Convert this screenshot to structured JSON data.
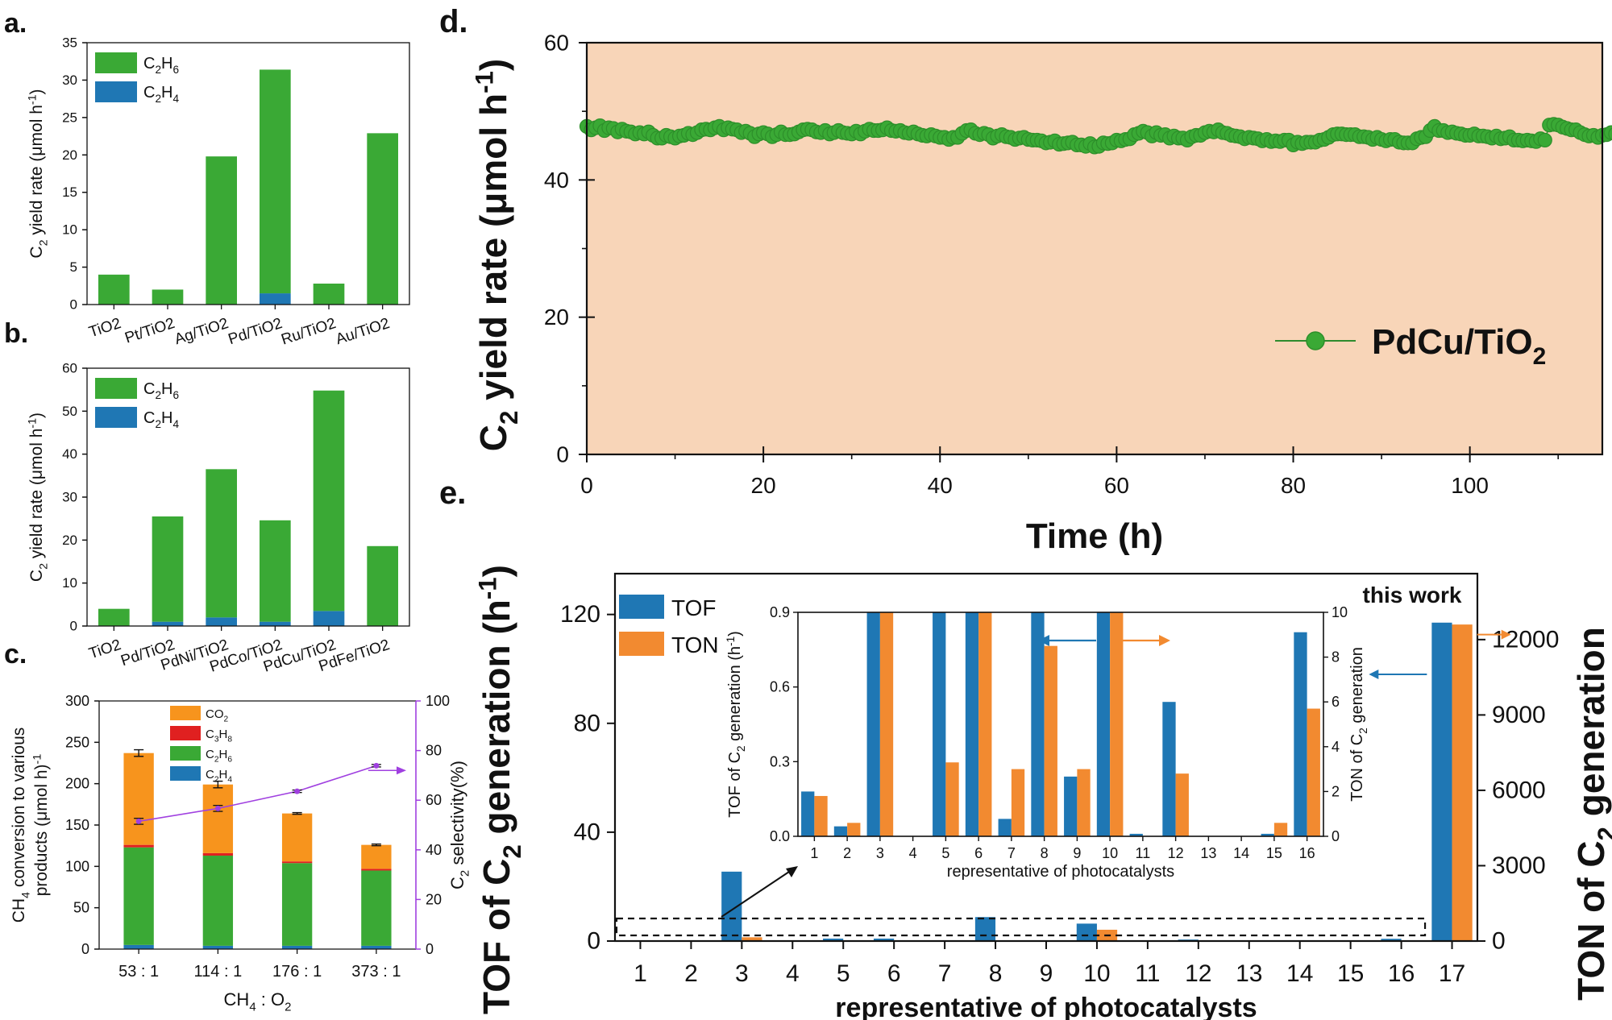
{
  "chart_data": [
    {
      "id": "a",
      "panel_label": "a.",
      "type": "bar",
      "stacked": true,
      "categories": [
        "TiO2",
        "Pt/TiO2",
        "Ag/TiO2",
        "Pd/TiO2",
        "Ru/TiO2",
        "Au/TiO2"
      ],
      "series": [
        {
          "name": "C2H4",
          "legend": {
            "base": "C",
            "sub": "2",
            "base2": "H",
            "sub2": "4"
          },
          "color": "#1f77b4",
          "values": [
            0,
            0,
            0,
            1.5,
            0,
            0
          ]
        },
        {
          "name": "C2H6",
          "legend": {
            "base": "C",
            "sub": "2",
            "base2": "H",
            "sub2": "6"
          },
          "color": "#3aa935",
          "values": [
            4.0,
            2.0,
            19.8,
            29.9,
            2.8,
            22.9
          ]
        }
      ],
      "ylabel": {
        "pre": "C",
        "sub": "2",
        "post": " yield rate (μmol h",
        "sup": "-1",
        "end": ")"
      },
      "ylim": [
        0,
        35
      ],
      "yticks": [
        0,
        5,
        10,
        15,
        20,
        25,
        30,
        35
      ],
      "legend_position": "top-left"
    },
    {
      "id": "b",
      "panel_label": "b.",
      "type": "bar",
      "stacked": true,
      "categories": [
        "TiO2",
        "Pd/TiO2",
        "PdNi/TiO2",
        "PdCo/TiO2",
        "PdCu/TiO2",
        "PdFe/TiO2"
      ],
      "series": [
        {
          "name": "C2H4",
          "legend": {
            "base": "C",
            "sub": "2",
            "base2": "H",
            "sub2": "4"
          },
          "color": "#1f77b4",
          "values": [
            0,
            1.0,
            2.0,
            1.0,
            3.5,
            0
          ]
        },
        {
          "name": "C2H6",
          "legend": {
            "base": "C",
            "sub": "2",
            "base2": "H",
            "sub2": "6"
          },
          "color": "#3aa935",
          "values": [
            4.0,
            24.5,
            34.5,
            23.6,
            51.3,
            18.6
          ]
        }
      ],
      "ylabel": {
        "pre": "C",
        "sub": "2",
        "post": " yield rate (μmol h",
        "sup": "-1",
        "end": ")"
      },
      "ylim": [
        0,
        60
      ],
      "yticks": [
        0,
        10,
        20,
        30,
        40,
        50,
        60
      ],
      "legend_position": "top-left"
    },
    {
      "id": "c",
      "panel_label": "c.",
      "type": "bar",
      "stacked": true,
      "categories": [
        "53 : 1",
        "114 : 1",
        "176 : 1",
        "373 : 1"
      ],
      "series": [
        {
          "name": "C2H4",
          "legend": {
            "base": "C",
            "sub": "2",
            "base2": "H",
            "sub2": "4"
          },
          "color": "#1f77b4",
          "values": [
            5,
            4,
            4,
            4
          ]
        },
        {
          "name": "C2H6",
          "legend": {
            "base": "C",
            "sub": "2",
            "base2": "H",
            "sub2": "6"
          },
          "color": "#3aa935",
          "values": [
            118,
            109,
            100,
            91
          ]
        },
        {
          "name": "C3H8",
          "legend": {
            "base": "C",
            "sub": "3",
            "base2": "H",
            "sub2": "8"
          },
          "color": "#e02020",
          "values": [
            3,
            3,
            2,
            2
          ]
        },
        {
          "name": "CO2",
          "legend": {
            "base": "CO",
            "sub": "2",
            "base2": "",
            "sub2": ""
          },
          "color": "#f7941d",
          "values": [
            111,
            83,
            58,
            29
          ]
        }
      ],
      "errors": [
        4,
        4,
        1,
        1
      ],
      "selectivity": {
        "values": [
          51.5,
          56.7,
          63.6,
          73.9
        ],
        "errors": [
          1.2,
          1.2,
          0.5,
          0.5
        ],
        "color": "#a040e0"
      },
      "ylabel_lines": [
        "CH",
        "products (μmol h"
      ],
      "ylabel_line1": {
        "pre": "CH",
        "sub": "4",
        "post": " conversion to various"
      },
      "ylabel_line2": {
        "pre": "products (μmol h",
        "sup": "-1",
        "post": ")"
      },
      "ylabel_right": {
        "pre": "C",
        "sub": "2",
        "post": " selectivity(%)"
      },
      "xlabel": {
        "pre": "CH",
        "sub": "4",
        "mid": " : O",
        "sub2": "2"
      },
      "ylim": [
        0,
        300
      ],
      "yticks": [
        0,
        50,
        100,
        150,
        200,
        250,
        300
      ],
      "ylim_right": [
        0,
        100
      ],
      "yticks_right": [
        0,
        20,
        40,
        60,
        80,
        100
      ],
      "legend_position": "top-left"
    },
    {
      "id": "d",
      "panel_label": "d.",
      "type": "scatter",
      "series_name": {
        "pre": "PdCu/TiO",
        "sub": "2"
      },
      "color": "#3aa935",
      "background": "#f8d5b8",
      "x_start": 0,
      "x_step": 0.5,
      "y": [
        47.8,
        47.3,
        47.6,
        47.9,
        47.2,
        47.6,
        47.5,
        47.0,
        47.4,
        47.1,
        47.0,
        46.7,
        46.9,
        46.7,
        47.0,
        46.5,
        46.1,
        46.1,
        46.5,
        46.3,
        46.1,
        46.4,
        46.5,
        46.8,
        46.6,
        46.9,
        47.3,
        47.4,
        47.3,
        47.6,
        47.8,
        47.3,
        47.6,
        47.4,
        47.3,
        46.9,
        47.1,
        46.8,
        46.3,
        46.7,
        46.9,
        46.7,
        46.3,
        46.6,
        47.0,
        46.6,
        46.6,
        46.7,
        47.0,
        47.3,
        47.4,
        47.3,
        47.0,
        46.9,
        47.2,
        46.7,
        46.9,
        47.2,
        46.9,
        46.8,
        46.7,
        47.1,
        46.7,
        47.1,
        47.4,
        47.2,
        47.2,
        47.3,
        47.6,
        47.2,
        47.1,
        47.2,
        46.9,
        46.8,
        47.0,
        46.7,
        46.5,
        46.4,
        46.6,
        46.4,
        46.2,
        46.2,
        45.9,
        46.2,
        46.2,
        46.8,
        47.2,
        47.3,
        46.8,
        46.6,
        46.8,
        46.6,
        46.1,
        46.4,
        46.6,
        46.3,
        46.2,
        45.9,
        46.1,
        46.2,
        45.9,
        45.8,
        45.8,
        45.7,
        45.4,
        45.5,
        45.7,
        45.2,
        45.3,
        45.4,
        45.5,
        45.1,
        45.1,
        44.9,
        45.3,
        44.8,
        44.9,
        45.4,
        45.3,
        45.4,
        45.8,
        45.7,
        45.9,
        46.0,
        46.6,
        46.8,
        47.1,
        46.9,
        46.4,
        46.9,
        46.5,
        46.6,
        46.1,
        46.4,
        46.1,
        46.1,
        45.8,
        46.3,
        46.5,
        46.5,
        46.9,
        47.1,
        47.0,
        47.3,
        46.9,
        46.8,
        46.5,
        46.4,
        46.3,
        46.0,
        46.2,
        46.1,
        46.0,
        45.7,
        45.9,
        45.6,
        45.7,
        45.6,
        45.8,
        45.8,
        45.1,
        45.5,
        45.3,
        45.5,
        45.5,
        45.5,
        45.8,
        45.9,
        46.2,
        46.6,
        46.7,
        46.7,
        46.6,
        46.6,
        46.6,
        46.3,
        46.3,
        46.2,
        45.9,
        46.2,
        45.9,
        45.7,
        45.9,
        45.9,
        45.5,
        45.4,
        45.4,
        45.4,
        46.0,
        46.2,
        46.3,
        47.2,
        47.8,
        47.2,
        47.2,
        46.9,
        47.0,
        46.8,
        46.7,
        46.5,
        46.5,
        46.7,
        46.4,
        46.4,
        46.3,
        46.1,
        46.4,
        46.0,
        46.1,
        46.3,
        45.8,
        45.8,
        45.7,
        45.8,
        45.7,
        45.6,
        46.0,
        45.8,
        48.0,
        48.1,
        48.0,
        47.7,
        47.5,
        47.3,
        47.3,
        46.9,
        46.6,
        46.4,
        46.5,
        46.2,
        46.5,
        46.6,
        46.9,
        46.7,
        46.4,
        46.4,
        46.8,
        46.6,
        46.4,
        46.0,
        46.6,
        46.0,
        46.3,
        46.3,
        46.2,
        46.0,
        46.5,
        46.4,
        46.0,
        46.2,
        46.6,
        46.8,
        46.7,
        46.6,
        46.4,
        46.1,
        46.4,
        46.3,
        45.9,
        46.1,
        45.5,
        45.4,
        45.6,
        45.4,
        45.1,
        45.3,
        45.6,
        45.1,
        45.0,
        44.8,
        45.1,
        44.8,
        45.2,
        44.9,
        45.5,
        45.3,
        45.4,
        45.6,
        45.7,
        45.6,
        46.0,
        46.3,
        46.6,
        46.3,
        46.7,
        46.4,
        46.3,
        46.6,
        46.9,
        46.7,
        46.6,
        46.4,
        46.2,
        46.3,
        46.3,
        46.2,
        45.7,
        46.0,
        45.8,
        45.8,
        45.5,
        45.4,
        45.4,
        45.2
      ],
      "xlabel": "Time (h)",
      "ylabel": {
        "pre": "C",
        "sub": "2",
        "post": " yield rate (μmol h",
        "sup": "-1",
        "end": ")"
      },
      "xlim": [
        0,
        115
      ],
      "xticks": [
        0,
        20,
        40,
        60,
        80,
        100
      ],
      "ylim": [
        0,
        60
      ],
      "yticks": [
        0,
        20,
        40,
        60
      ],
      "legend_position": "lower-right"
    },
    {
      "id": "e",
      "panel_label": "e.",
      "type": "bar",
      "categories": [
        "1",
        "2",
        "3",
        "4",
        "5",
        "6",
        "7",
        "8",
        "9",
        "10",
        "11",
        "12",
        "13",
        "14",
        "15",
        "16",
        "17"
      ],
      "series": [
        {
          "name": "TOF",
          "axis": "left",
          "color": "#1f77b4",
          "values": [
            0.18,
            0.04,
            25.5,
            0,
            0.9,
            0.9,
            0.07,
            8.8,
            0.24,
            6.4,
            0.01,
            0.54,
            0,
            0,
            0.01,
            0.82,
            117
          ]
        },
        {
          "name": "TON",
          "axis": "right",
          "color": "#f28a30",
          "values": [
            1.8,
            0.6,
            150,
            0,
            3.3,
            30,
            3.0,
            8.5,
            3.0,
            450,
            0,
            2.8,
            0,
            0,
            0.6,
            5.7,
            12600
          ]
        }
      ],
      "xlabel": "representative of photocatalysts",
      "ylabel_left": {
        "pre": "TOF of C",
        "sub": "2",
        "post": " generation (h",
        "sup": "-1",
        "end": ")"
      },
      "ylabel_right": {
        "pre": "TON of C",
        "sub": "2",
        "post": " generation"
      },
      "ylim_left": [
        0,
        135
      ],
      "yticks_left": [
        0,
        40,
        80,
        120
      ],
      "ylim_right": [
        0,
        14625
      ],
      "yticks_right": [
        0,
        3000,
        6000,
        9000,
        12000
      ],
      "annotation": "this work",
      "legend_position": "top-left",
      "inset": {
        "categories": [
          "1",
          "2",
          "3",
          "4",
          "5",
          "6",
          "7",
          "8",
          "9",
          "10",
          "11",
          "12",
          "13",
          "14",
          "15",
          "16"
        ],
        "tof": [
          0.18,
          0.04,
          25.5,
          0,
          0.9,
          0.9,
          0.07,
          8.8,
          0.24,
          6.4,
          0.01,
          0.54,
          0,
          0,
          0.01,
          0.82
        ],
        "ton": [
          1.8,
          0.6,
          150,
          0,
          3.3,
          30,
          3.0,
          8.5,
          3.0,
          450,
          0,
          2.8,
          0,
          0,
          0.6,
          5.7
        ],
        "xlabel": "representative of photocatalysts",
        "ylabel_left": {
          "pre": "TOF of C",
          "sub": "2",
          "post": " generation (h",
          "sup": "-1",
          "end": ")"
        },
        "ylabel_right": {
          "pre": "TON of C",
          "sub": "2",
          "post": " generation"
        },
        "ylim_left": [
          0,
          0.9
        ],
        "yticks_left": [
          "0.0",
          "0.3",
          "0.6",
          "0.9"
        ],
        "ylim_right": [
          0,
          10
        ],
        "yticks_right": [
          0,
          2,
          4,
          6,
          8,
          10
        ]
      }
    }
  ]
}
